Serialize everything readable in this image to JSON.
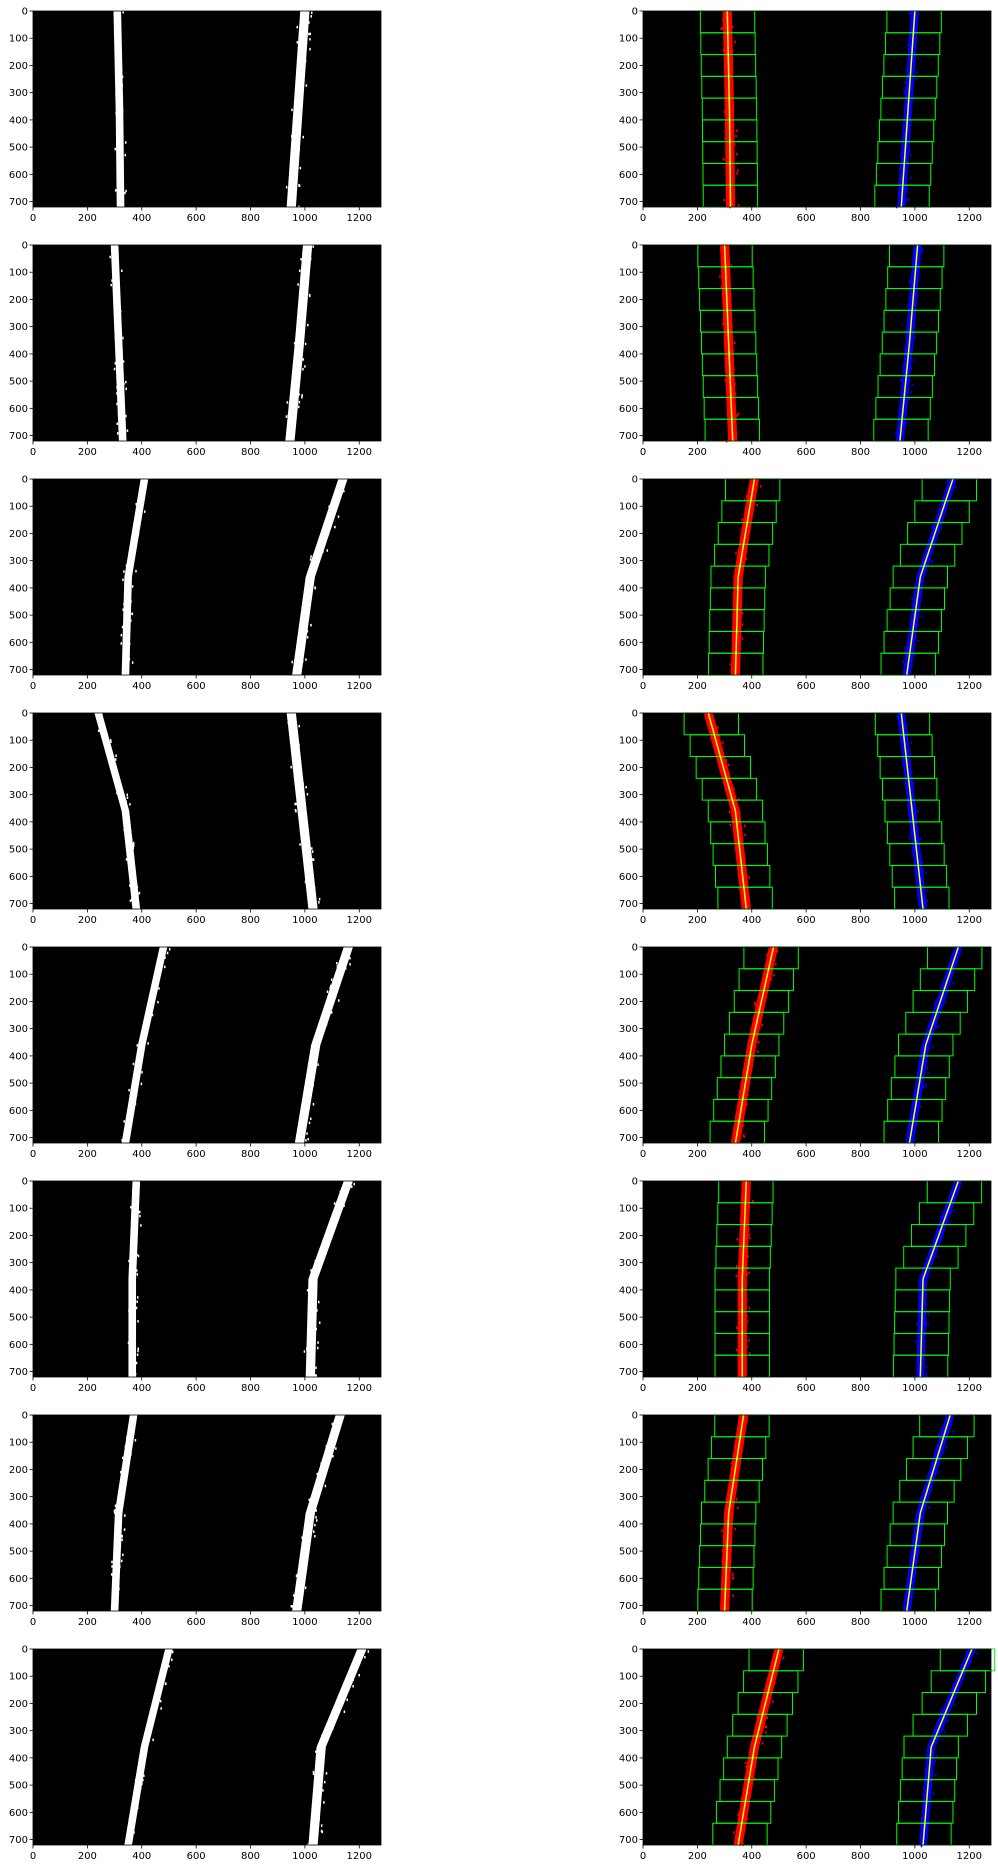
{
  "chart_data": {
    "type": "image-grid",
    "description_free": true,
    "rows": 8,
    "cols": 2,
    "image_extent": {
      "x": [
        0,
        1280
      ],
      "y": [
        0,
        720
      ]
    },
    "xticks": [
      0,
      200,
      400,
      600,
      800,
      1000,
      1200
    ],
    "yticks": [
      0,
      100,
      200,
      300,
      400,
      500,
      600,
      700
    ],
    "colors": {
      "background": "#000000",
      "binary_pixels": "#ffffff",
      "left_lane_pixels": "#ff0000",
      "right_lane_pixels": "#0000ff",
      "window": "#00ff00",
      "fit_line": "#ffff00"
    },
    "panels": [
      {
        "left_fit": [
          [
            0,
            310
          ],
          [
            360,
            318
          ],
          [
            720,
            322
          ]
        ],
        "right_fit": [
          [
            0,
            1000
          ],
          [
            360,
            975
          ],
          [
            720,
            950
          ]
        ],
        "left_pixels": true,
        "right_pixels": true,
        "window_w": 200
      },
      {
        "left_fit": [
          [
            0,
            300
          ],
          [
            360,
            315
          ],
          [
            720,
            330
          ]
        ],
        "right_fit": [
          [
            0,
            1010
          ],
          [
            360,
            980
          ],
          [
            720,
            945
          ]
        ],
        "left_pixels": true,
        "right_pixels": true,
        "window_w": 200
      },
      {
        "left_fit": [
          [
            0,
            410
          ],
          [
            360,
            350
          ],
          [
            720,
            340
          ]
        ],
        "right_fit": [
          [
            0,
            1140
          ],
          [
            360,
            1020
          ],
          [
            720,
            970
          ]
        ],
        "left_pixels": true,
        "right_pixels": true,
        "window_w": 200
      },
      {
        "left_fit": [
          [
            0,
            240
          ],
          [
            360,
            340
          ],
          [
            720,
            380
          ]
        ],
        "right_fit": [
          [
            0,
            950
          ],
          [
            360,
            990
          ],
          [
            720,
            1030
          ]
        ],
        "left_pixels": true,
        "right_pixels": true,
        "window_w": 200
      },
      {
        "left_fit": [
          [
            0,
            480
          ],
          [
            360,
            400
          ],
          [
            720,
            340
          ]
        ],
        "right_fit": [
          [
            0,
            1160
          ],
          [
            360,
            1040
          ],
          [
            720,
            980
          ]
        ],
        "left_pixels": true,
        "right_pixels": true,
        "window_w": 200
      },
      {
        "left_fit": [
          [
            0,
            380
          ],
          [
            360,
            365
          ],
          [
            720,
            365
          ]
        ],
        "right_fit": [
          [
            0,
            1160
          ],
          [
            360,
            1030
          ],
          [
            720,
            1020
          ]
        ],
        "left_pixels": true,
        "right_pixels": true,
        "window_w": 200
      },
      {
        "left_fit": [
          [
            0,
            370
          ],
          [
            360,
            315
          ],
          [
            720,
            300
          ]
        ],
        "right_fit": [
          [
            0,
            1130
          ],
          [
            360,
            1020
          ],
          [
            720,
            970
          ]
        ],
        "left_pixels": true,
        "right_pixels": true,
        "window_w": 200
      },
      {
        "left_fit": [
          [
            0,
            500
          ],
          [
            360,
            410
          ],
          [
            720,
            350
          ]
        ],
        "right_fit": [
          [
            0,
            1210
          ],
          [
            360,
            1060
          ],
          [
            720,
            1030
          ]
        ],
        "left_pixels": true,
        "right_pixels": true,
        "window_w": 200
      }
    ]
  }
}
